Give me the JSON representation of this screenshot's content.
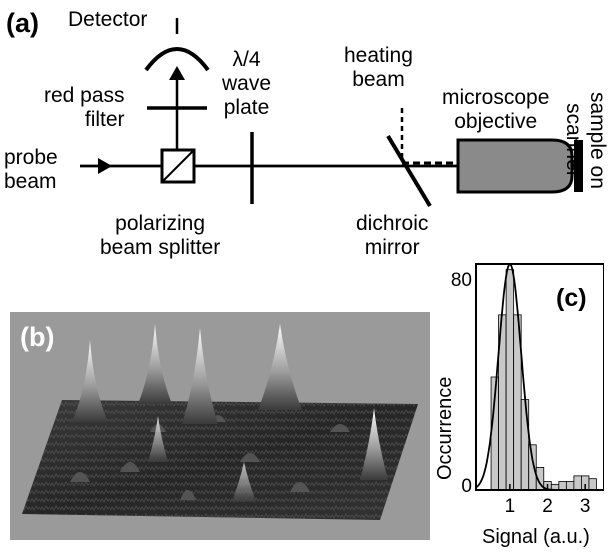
{
  "panels": {
    "a": "(a)",
    "b": "(b)",
    "c": "(c)"
  },
  "setup_labels": {
    "detector": "Detector",
    "red_pass_filter": [
      "red pass",
      "filter"
    ],
    "probe_beam": [
      "probe",
      "beam"
    ],
    "lambda_plate": [
      "λ/4",
      "wave",
      "plate"
    ],
    "polarizing_beam_splitter": [
      "polarizing",
      "beam splitter"
    ],
    "heating_beam": [
      "heating",
      "beam"
    ],
    "dichroic_mirror": [
      "dichroic",
      "mirror"
    ],
    "microscope_objective": [
      "microscope",
      "objective"
    ],
    "sample_on_scanner": [
      "sample on",
      "scanner"
    ]
  },
  "chart_data": {
    "type": "bar",
    "xlabel": "Signal (a.u.)",
    "ylabel": "Occurrence",
    "xlim": [
      0.1,
      3.5
    ],
    "ylim": [
      0,
      80
    ],
    "x_ticks": [
      "1",
      "2",
      "3"
    ],
    "y_ticks": [
      "0",
      "80"
    ],
    "bin_width": 0.2,
    "bin_centers": [
      0.6,
      0.8,
      1.0,
      1.2,
      1.4,
      1.6,
      1.8,
      2.0,
      2.2,
      2.4,
      2.6,
      2.8,
      3.0,
      3.2
    ],
    "values": [
      40,
      62,
      78,
      62,
      32,
      16,
      8,
      3,
      2,
      3,
      3,
      5,
      5,
      4
    ],
    "fit": "gaussian",
    "fit_center": 1.0,
    "fit_peak": 80,
    "fit_sigma": 0.3,
    "bar_color": "#c8c8c8"
  },
  "surface": {
    "background": "#9a9a9a"
  }
}
